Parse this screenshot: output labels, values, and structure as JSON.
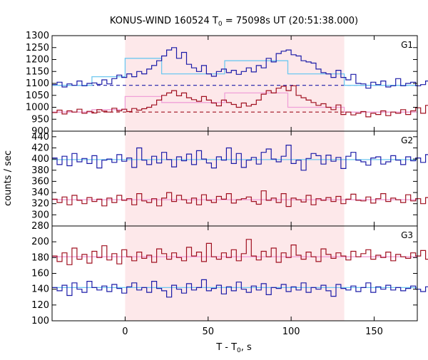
{
  "chart_data": {
    "type": "line",
    "title": {
      "main": "KONUS-WIND 160524 T",
      "sub": "0",
      "rest": " = 75098s UT (20:51:38.000)"
    },
    "xlabel": {
      "main": "T - T",
      "sub": "0",
      "rest": ", s"
    },
    "ylabel": "counts / sec",
    "xlim": [
      -44,
      176
    ],
    "xticks": [
      0,
      50,
      100,
      150
    ],
    "x_ticklabels": [
      "0",
      "50",
      "100",
      "150"
    ],
    "grid": false,
    "highlight_interval": [
      0,
      132
    ],
    "colors": {
      "low_channel": "#1c1ca8",
      "high_channel": "#a01020",
      "low_fit": "#6ec8f0",
      "high_fit": "#f0a0d8",
      "highlight": "#fde8ea"
    },
    "panels": [
      {
        "label": "G1",
        "ylim": [
          900,
          1300
        ],
        "yticks": [
          900,
          950,
          1000,
          1050,
          1100,
          1150,
          1200,
          1250,
          1300
        ],
        "y_ticklabels": [
          "900",
          "950",
          "1000",
          "1050",
          "1100",
          "1150",
          "1200",
          "1250",
          "1300"
        ],
        "background_levels": {
          "low_channel": 1092,
          "high_channel": 980
        },
        "series": [
          {
            "role": "low_channel",
            "bin_start": -44,
            "bin_width": 3,
            "values": [
              1095,
              1105,
              1085,
              1098,
              1092,
              1110,
              1090,
              1100,
              1102,
              1096,
              1115,
              1098,
              1120,
              1135,
              1125,
              1140,
              1128,
              1150,
              1140,
              1160,
              1175,
              1195,
              1215,
              1240,
              1250,
              1205,
              1230,
              1180,
              1165,
              1150,
              1175,
              1140,
              1130,
              1150,
              1160,
              1145,
              1155,
              1138,
              1150,
              1165,
              1148,
              1175,
              1165,
              1205,
              1190,
              1225,
              1235,
              1240,
              1220,
              1215,
              1195,
              1190,
              1185,
              1160,
              1145,
              1140,
              1125,
              1155,
              1125,
              1115,
              1138,
              1100,
              1098,
              1080,
              1105,
              1095,
              1110,
              1085,
              1090,
              1120,
              1090,
              1100,
              1105,
              1090,
              1095,
              1110,
              1080,
              1120
            ]
          },
          {
            "role": "high_channel",
            "bin_start": -44,
            "bin_width": 3,
            "values": [
              978,
              988,
              972,
              985,
              980,
              992,
              975,
              983,
              976,
              990,
              984,
              980,
              996,
              985,
              992,
              982,
              995,
              988,
              994,
              1000,
              1010,
              1030,
              1050,
              1060,
              1070,
              1048,
              1060,
              1040,
              1032,
              1025,
              1045,
              1030,
              1018,
              1006,
              1030,
              1020,
              1012,
              1000,
              1018,
              1005,
              1012,
              1030,
              1055,
              1070,
              1060,
              1080,
              1088,
              1070,
              1090,
              1050,
              1040,
              1030,
              1020,
              1008,
              1015,
              1000,
              990,
              1010,
              970,
              980,
              968,
              975,
              982,
              960,
              975,
              970,
              985,
              965,
              980,
              975,
              990,
              970,
              985,
              998,
              975,
              1008,
              970,
              985
            ]
          },
          {
            "role": "low_fit",
            "steps": [
              [
                -44,
                -20,
                1092
              ],
              [
                -20,
                0,
                1128
              ],
              [
                0,
                22,
                1205
              ],
              [
                22,
                60,
                1140
              ],
              [
                60,
                98,
                1195
              ],
              [
                98,
                132,
                1140
              ],
              [
                132,
                176,
                1092
              ]
            ]
          },
          {
            "role": "high_fit",
            "steps": [
              [
                -44,
                -20,
                980
              ],
              [
                -20,
                0,
                990
              ],
              [
                0,
                22,
                1045
              ],
              [
                22,
                60,
                1020
              ],
              [
                60,
                98,
                1060
              ],
              [
                98,
                132,
                1000
              ],
              [
                132,
                176,
                980
              ]
            ]
          }
        ]
      },
      {
        "label": "G2",
        "ylim": [
          280,
          450
        ],
        "yticks": [
          280,
          300,
          320,
          340,
          360,
          380,
          400,
          420,
          440
        ],
        "y_ticklabels": [
          "280",
          "300",
          "320",
          "340",
          "360",
          "380",
          "400",
          "420",
          "440"
        ],
        "series": [
          {
            "role": "low_channel",
            "bin_start": -44,
            "bin_width": 3,
            "values": [
              402,
              390,
              405,
              388,
              410,
              395,
              401,
              392,
              406,
              384,
              398,
              400,
              394,
              408,
              396,
              402,
              385,
              420,
              398,
              390,
              405,
              393,
              412,
              399,
              386,
              404,
              397,
              409,
              390,
              415,
              400,
              393,
              384,
              404,
              398,
              420,
              392,
              410,
              385,
              398,
              403,
              391,
              412,
              418,
              400,
              395,
              405,
              425,
              392,
              398,
              380,
              401,
              410,
              406,
              391,
              407,
              396,
              403,
              383,
              405,
              412,
              398,
              395,
              389,
              402,
              404,
              391,
              395,
              406,
              398,
              390,
              404,
              397,
              402,
              394,
              408,
              399,
              401
            ]
          },
          {
            "role": "high_channel",
            "bin_start": -44,
            "bin_width": 3,
            "values": [
              328,
              322,
              332,
              318,
              335,
              326,
              320,
              331,
              324,
              328,
              316,
              330,
              322,
              335,
              326,
              329,
              318,
              338,
              325,
              322,
              329,
              316,
              330,
              340,
              324,
              335,
              327,
              321,
              330,
              318,
              336,
              326,
              322,
              333,
              328,
              338,
              321,
              327,
              329,
              332,
              324,
              319,
              343,
              326,
              330,
              322,
              338,
              315,
              330,
              327,
              323,
              335,
              318,
              329,
              326,
              331,
              324,
              333,
              320,
              328,
              337,
              326,
              325,
              332,
              321,
              329,
              338,
              324,
              330,
              327,
              322,
              336,
              325,
              329,
              320,
              331,
              324,
              328
            ]
          },
          {
            "role": "low_fit",
            "steps": [
              [
                -44,
                176,
                399
              ]
            ]
          },
          {
            "role": "high_fit",
            "steps": [
              [
                -44,
                176,
                327
              ]
            ]
          }
        ]
      },
      {
        "label": "G3",
        "ylim": [
          100,
          220
        ],
        "yticks": [
          100,
          120,
          140,
          160,
          180,
          200
        ],
        "y_ticklabels": [
          "100",
          "120",
          "140",
          "160",
          "180",
          "200"
        ],
        "series": [
          {
            "role": "low_channel",
            "bin_start": -44,
            "bin_width": 3,
            "values": [
              142,
              138,
              145,
              132,
              148,
              140,
              136,
              150,
              142,
              139,
              144,
              137,
              146,
              141,
              135,
              143,
              148,
              139,
              142,
              136,
              150,
              141,
              138,
              130,
              145,
              140,
              135,
              147,
              139,
              142,
              152,
              138,
              141,
              145,
              134,
              143,
              138,
              149,
              140,
              136,
              144,
              139,
              147,
              133,
              142,
              141,
              146,
              137,
              143,
              139,
              148,
              136,
              142,
              140,
              145,
              138,
              131,
              146,
              141,
              139,
              144,
              137,
              142,
              148,
              136,
              143,
              140,
              145,
              139,
              142,
              138,
              141,
              144,
              140,
              137,
              143,
              141,
              142
            ]
          },
          {
            "role": "high_channel",
            "bin_start": -44,
            "bin_width": 3,
            "values": [
              182,
              175,
              186,
              171,
              192,
              178,
              184,
              173,
              188,
              180,
              195,
              177,
              185,
              172,
              190,
              181,
              176,
              187,
              179,
              183,
              174,
              191,
              185,
              178,
              186,
              180,
              176,
              193,
              182,
              187,
              175,
              198,
              181,
              178,
              186,
              180,
              190,
              176,
              185,
              203,
              182,
              177,
              188,
              181,
              192,
              174,
              186,
              180,
              196,
              183,
              178,
              187,
              181,
              175,
              191,
              184,
              179,
              186,
              182,
              177,
              188,
              181,
              185,
              190,
              178,
              183,
              180,
              187,
              176,
              184,
              181,
              179,
              186,
              182,
              189,
              178,
              184,
              181
            ]
          },
          {
            "role": "low_fit",
            "steps": [
              [
                -44,
                176,
                142
              ]
            ]
          },
          {
            "role": "high_fit",
            "steps": [
              [
                -44,
                176,
                181
              ]
            ]
          }
        ]
      }
    ]
  }
}
